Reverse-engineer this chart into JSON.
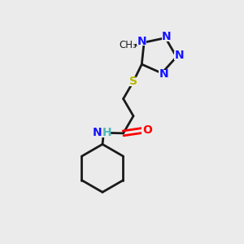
{
  "background_color": "#ebebeb",
  "bond_color": "#1a1a1a",
  "N_color": "#1414ff",
  "O_color": "#ff0000",
  "S_color": "#b8b800",
  "NH_N_color": "#1414ff",
  "NH_H_color": "#4db8b8",
  "figsize": [
    3.0,
    3.0
  ],
  "dpi": 100,
  "xlim": [
    0,
    10
  ],
  "ylim": [
    0,
    10
  ]
}
